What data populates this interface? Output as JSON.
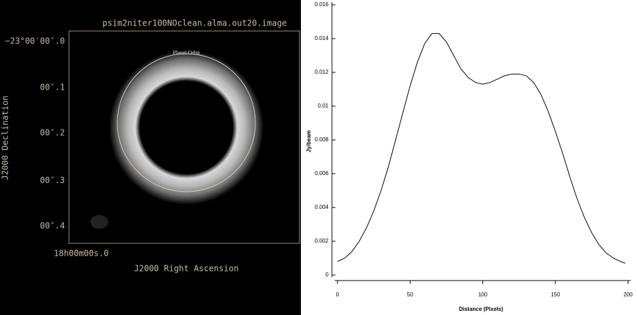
{
  "image": {
    "title": "psim2niter100NOclean.alma.out20.image",
    "annotation": "Planet Orbit",
    "y_tick_labels": [
      "−23°00′00″.0",
      "00″.1",
      "00″.2",
      "00″.3",
      "00″.4"
    ],
    "x_tick_labels": [
      "18h00m00s.0"
    ],
    "x_axis_title": "J2000 Right Ascension",
    "y_axis_title": "J2000 Declination"
  },
  "chart_data": {
    "type": "line",
    "color": "#000000",
    "x_label": "Distance (Pixels)",
    "y_label": "Jy/beam",
    "x": [
      0,
      5,
      10,
      15,
      20,
      25,
      30,
      35,
      40,
      45,
      50,
      55,
      60,
      65,
      70,
      75,
      80,
      85,
      90,
      95,
      100,
      105,
      110,
      115,
      120,
      125,
      130,
      135,
      140,
      145,
      150,
      155,
      160,
      165,
      170,
      175,
      180,
      185,
      190,
      195,
      198
    ],
    "values": [
      0.0008,
      0.001,
      0.0014,
      0.002,
      0.0028,
      0.0038,
      0.005,
      0.0064,
      0.008,
      0.0096,
      0.0112,
      0.0126,
      0.0137,
      0.0143,
      0.0143,
      0.0138,
      0.013,
      0.0122,
      0.0117,
      0.0114,
      0.0113,
      0.0114,
      0.0116,
      0.0118,
      0.0119,
      0.0119,
      0.0118,
      0.0114,
      0.0107,
      0.0097,
      0.0085,
      0.0072,
      0.0058,
      0.0045,
      0.0034,
      0.0025,
      0.0018,
      0.0013,
      0.001,
      0.0008,
      0.0007
    ],
    "xlim": [
      0,
      200
    ],
    "xticks": [
      0,
      50,
      100,
      150,
      200
    ],
    "ylim": [
      0,
      0.016
    ],
    "yticks": [
      0,
      0.002,
      0.004,
      0.006,
      0.008,
      0.01,
      0.012,
      0.014,
      0.016
    ]
  }
}
